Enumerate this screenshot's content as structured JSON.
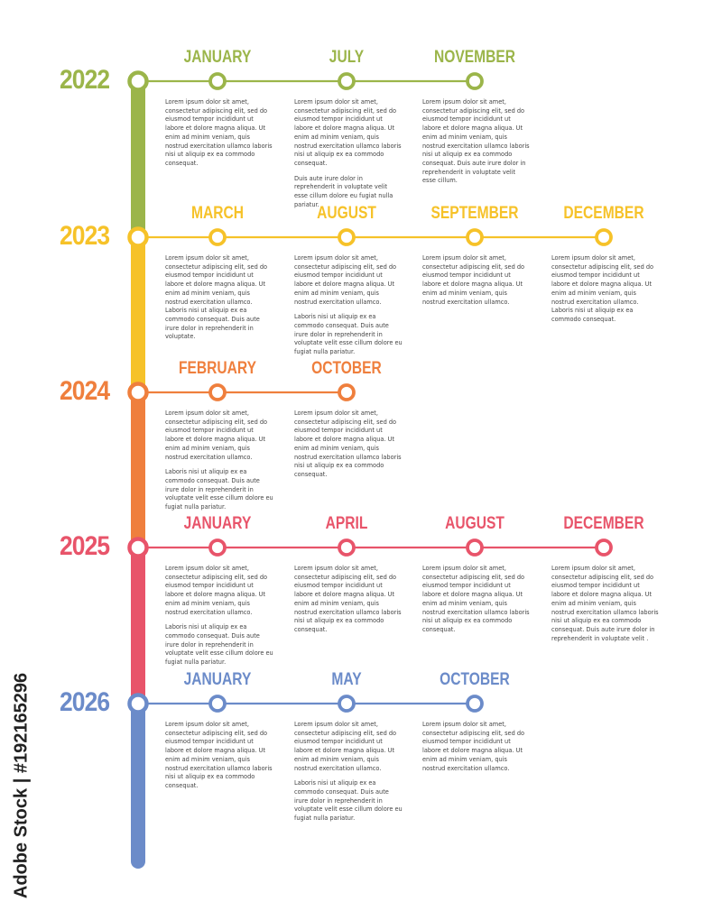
{
  "colors": {
    "2022": "#9bb54a",
    "2023": "#f6c229",
    "2024": "#ef7f3d",
    "2025": "#e8546a",
    "2026": "#6b8bc9"
  },
  "years": [
    {
      "year": "2022",
      "color": "#9bb54a",
      "events": [
        {
          "month": "JANUARY",
          "paragraphs": [
            "Lorem ipsum dolor sit amet, consectetur adipiscing elit, sed do eiusmod tempor incididunt ut labore et dolore magna aliqua. Ut enim ad minim veniam, quis nostrud exercitation ullamco laboris nisi ut aliquip ex ea commodo consequat."
          ]
        },
        {
          "month": "JULY",
          "paragraphs": [
            "Lorem ipsum dolor sit amet, consectetur adipiscing elit, sed do eiusmod tempor incididunt ut labore et dolore magna aliqua. Ut enim ad minim veniam, quis nostrud exercitation ullamco laboris nisi ut aliquip ex ea commodo consequat.",
            "Duis aute irure dolor in reprehenderit in voluptate velit esse cillum dolore eu fugiat nulla pariatur."
          ]
        },
        {
          "month": "NOVEMBER",
          "paragraphs": [
            "Lorem ipsum dolor sit amet, consectetur adipiscing elit, sed do eiusmod tempor incididunt ut labore et dolore magna aliqua. Ut enim ad minim veniam, quis nostrud exercitation ullamco laboris nisi ut aliquip ex ea commodo consequat. Duis aute irure dolor in reprehenderit in voluptate velit esse cillum."
          ]
        }
      ]
    },
    {
      "year": "2023",
      "color": "#f6c229",
      "events": [
        {
          "month": "MARCH",
          "paragraphs": [
            "Lorem ipsum dolor sit amet, consectetur adipiscing elit, sed do eiusmod tempor incididunt ut labore et dolore magna aliqua. Ut enim ad minim veniam, quis nostrud exercitation ullamco. Laboris nisi ut aliquip ex ea commodo consequat. Duis aute irure dolor in reprehenderit in voluptate."
          ]
        },
        {
          "month": "AUGUST",
          "paragraphs": [
            "Lorem ipsum dolor sit amet, consectetur adipiscing elit, sed do eiusmod tempor incididunt ut labore et dolore magna aliqua. Ut enim ad minim veniam, quis nostrud exercitation ullamco.",
            "Laboris nisi ut aliquip ex ea commodo consequat. Duis aute irure dolor in reprehenderit in voluptate velit esse cillum dolore eu fugiat nulla pariatur."
          ]
        },
        {
          "month": "SEPTEMBER",
          "paragraphs": [
            "Lorem ipsum dolor sit amet, consectetur adipiscing elit, sed do eiusmod tempor incididunt ut labore et dolore magna aliqua. Ut enim ad minim veniam, quis nostrud exercitation ullamco."
          ]
        },
        {
          "month": "DECEMBER",
          "paragraphs": [
            "Lorem ipsum dolor sit amet, consectetur adipiscing elit, sed do eiusmod tempor incididunt ut labore et dolore magna aliqua. Ut enim ad minim veniam, quis nostrud exercitation ullamco. Laboris nisi ut aliquip ex ea commodo consequat."
          ]
        }
      ]
    },
    {
      "year": "2024",
      "color": "#ef7f3d",
      "events": [
        {
          "month": "FEBRUARY",
          "paragraphs": [
            "Lorem ipsum dolor sit amet, consectetur adipiscing elit, sed do eiusmod tempor incididunt ut labore et dolore magna aliqua. Ut enim ad minim veniam, quis nostrud exercitation ullamco.",
            "Laboris nisi ut aliquip ex ea commodo consequat. Duis aute irure dolor in reprehenderit in voluptate velit esse cillum dolore eu fugiat nulla pariatur."
          ]
        },
        {
          "month": "OCTOBER",
          "paragraphs": [
            "Lorem ipsum dolor sit amet, consectetur adipiscing elit, sed do eiusmod tempor incididunt ut labore et dolore magna aliqua. Ut enim ad minim veniam, quis nostrud exercitation ullamco laboris nisi ut aliquip ex ea commodo consequat."
          ]
        }
      ]
    },
    {
      "year": "2025",
      "color": "#e8546a",
      "events": [
        {
          "month": "JANUARY",
          "paragraphs": [
            "Lorem ipsum dolor sit amet, consectetur adipiscing elit, sed do eiusmod tempor incididunt ut labore et dolore magna aliqua. Ut enim ad minim veniam, quis nostrud exercitation ullamco.",
            "Laboris nisi ut aliquip ex ea commodo consequat. Duis aute irure dolor in reprehenderit in voluptate velit esse cillum dolore eu fugiat nulla pariatur."
          ]
        },
        {
          "month": "APRIL",
          "paragraphs": [
            "Lorem ipsum dolor sit amet, consectetur adipiscing elit, sed do eiusmod tempor incididunt ut labore et dolore magna aliqua. Ut enim ad minim veniam, quis nostrud exercitation ullamco laboris nisi ut aliquip ex ea commodo consequat."
          ]
        },
        {
          "month": "AUGUST",
          "paragraphs": [
            "Lorem ipsum dolor sit amet, consectetur adipiscing elit, sed do eiusmod tempor incididunt ut labore et dolore magna aliqua. Ut enim ad minim veniam, quis nostrud exercitation ullamco laboris nisi ut aliquip ex ea commodo consequat."
          ]
        },
        {
          "month": "DECEMBER",
          "paragraphs": [
            "Lorem ipsum dolor sit amet, consectetur adipiscing elit, sed do eiusmod tempor incididunt ut labore et dolore magna aliqua. Ut enim ad minim veniam, quis nostrud exercitation ullamco laboris nisi ut aliquip ex ea commodo consequat. Duis aute irure dolor in reprehenderit in voluptate velit ."
          ]
        }
      ]
    },
    {
      "year": "2026",
      "color": "#6b8bc9",
      "events": [
        {
          "month": "JANUARY",
          "paragraphs": [
            "Lorem ipsum dolor sit amet, consectetur adipiscing elit, sed do eiusmod tempor incididunt ut labore et dolore magna aliqua. Ut enim ad minim veniam, quis nostrud exercitation ullamco laboris nisi ut aliquip ex ea commodo consequat."
          ]
        },
        {
          "month": "MAY",
          "paragraphs": [
            "Lorem ipsum dolor sit amet, consectetur adipiscing elit, sed do eiusmod tempor incididunt ut labore et dolore magna aliqua. Ut enim ad minim veniam, quis nostrud exercitation ullamco.",
            "Laboris nisi ut aliquip ex ea commodo consequat. Duis aute irure dolor in reprehenderit in voluptate velit esse cillum dolore eu fugiat nulla pariatur."
          ]
        },
        {
          "month": "OCTOBER",
          "paragraphs": [
            "Lorem ipsum dolor sit amet, consectetur adipiscing elit, sed do eiusmod tempor incididunt ut labore et dolore magna aliqua. Ut enim ad minim veniam, quis nostrud exercitation ullamco."
          ]
        }
      ]
    }
  ],
  "watermark": "Adobe Stock | #192165296"
}
